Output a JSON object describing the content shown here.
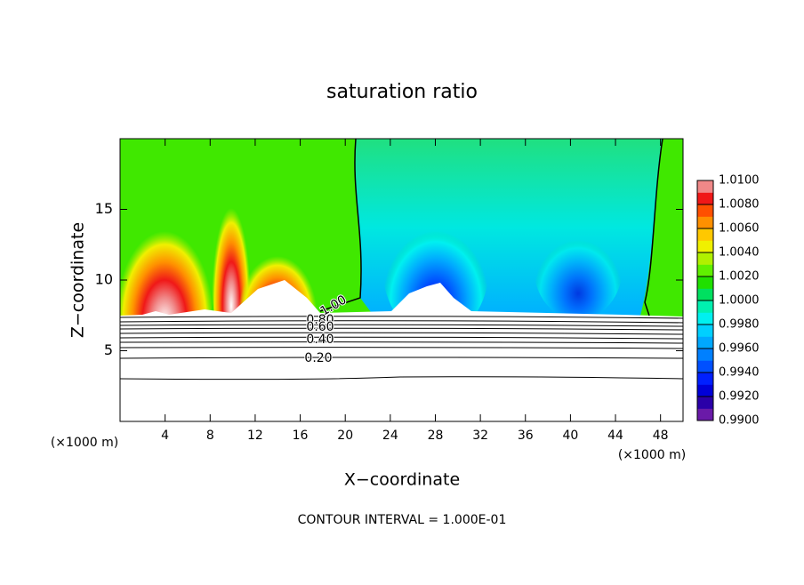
{
  "chart_data": {
    "type": "contour",
    "title": "saturation ratio",
    "xlabel": "X−coordinate",
    "ylabel": "Z−coordinate",
    "x_unit_left": "(×1000 m)",
    "x_unit_right": "(×1000 m)",
    "footer": "CONTOUR INTERVAL = 1.000E-01",
    "xlim": [
      0,
      50
    ],
    "ylim": [
      0,
      20
    ],
    "xticks": [
      4,
      8,
      12,
      16,
      20,
      24,
      28,
      32,
      36,
      40,
      44,
      48
    ],
    "yticks": [
      5,
      10,
      15
    ],
    "colorbar_lim": [
      0.99,
      1.01
    ],
    "colorbar_ticks": [
      {
        "value": 0.99,
        "label": "0.9900"
      },
      {
        "value": 0.992,
        "label": "0.9920"
      },
      {
        "value": 0.994,
        "label": "0.9940"
      },
      {
        "value": 0.996,
        "label": "0.9960"
      },
      {
        "value": 0.998,
        "label": "0.9980"
      },
      {
        "value": 1,
        "label": "1.0000"
      },
      {
        "value": 1.002,
        "label": "1.0020"
      },
      {
        "value": 1.004,
        "label": "1.0040"
      },
      {
        "value": 1.006,
        "label": "1.0060"
      },
      {
        "value": 1.008,
        "label": "1.0080"
      },
      {
        "value": 1.01,
        "label": "1.0100"
      }
    ],
    "colorbar_colors": [
      "#6a1aa8",
      "#2a00a8",
      "#0000d8",
      "#0020ff",
      "#0050ff",
      "#0080ff",
      "#00a8ff",
      "#00d0ff",
      "#00f0f0",
      "#00f0b0",
      "#00e060",
      "#20e000",
      "#60f000",
      "#b0f000",
      "#f0f000",
      "#ffc800",
      "#ff9000",
      "#ff5000",
      "#f01818",
      "#f08888"
    ],
    "contour_labels": [
      {
        "value": 1,
        "label": "1.00"
      },
      {
        "value": 0.8,
        "label": "0.80"
      },
      {
        "value": 0.6,
        "label": "0.60"
      },
      {
        "value": 0.4,
        "label": "0.40"
      },
      {
        "value": 0.2,
        "label": "0.20"
      }
    ]
  }
}
